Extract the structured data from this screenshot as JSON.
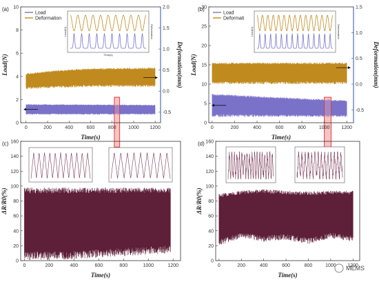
{
  "chart_data": [
    {
      "type": "line",
      "panel": "(a)",
      "xlabel": "Time(s)",
      "ylabel": "Load(N)",
      "y2label": "Deformation(mm)",
      "xlim": [
        -50,
        1250
      ],
      "ylim": [
        0,
        10
      ],
      "y2lim": [
        -0.75,
        2.0
      ],
      "xticks": [
        0,
        200,
        400,
        600,
        800,
        1000,
        1200
      ],
      "yticks": [
        0,
        2,
        4,
        6,
        8,
        10
      ],
      "y2ticks": [
        -0.5,
        0.0,
        0.5,
        1.0,
        1.5,
        2.0
      ],
      "highlight_x": [
        820,
        870
      ],
      "series": [
        {
          "name": "Load",
          "color": "#7a72c9",
          "axis": "left",
          "x": [
            0,
            1200
          ],
          "y_min": [
            0.7,
            0.7
          ],
          "y_max": [
            1.6,
            1.55
          ]
        },
        {
          "name": "Deformation",
          "color": "#c08a1e",
          "axis": "right",
          "x": [
            0,
            300,
            600,
            900,
            1200
          ],
          "y_min": [
            0.05,
            0.08,
            0.1,
            0.1,
            0.1
          ],
          "y_max": [
            0.42,
            0.5,
            0.54,
            0.55,
            0.56
          ]
        }
      ],
      "inset": {
        "ylabel": "Load(N)",
        "y2label": "Deformation",
        "xlabel": "Time(s)",
        "cycles": 10
      }
    },
    {
      "type": "line",
      "panel": "(b)",
      "xlabel": "Time(s)",
      "ylabel": "Load(N)",
      "y2label": "Deformation(mm)",
      "xlim": [
        -30,
        1260
      ],
      "ylim": [
        0,
        30
      ],
      "y2lim": [
        -0.75,
        1.5
      ],
      "xticks": [
        0,
        200,
        400,
        600,
        800,
        1000,
        1200
      ],
      "yticks": [
        0,
        5,
        10,
        15,
        20,
        25,
        30
      ],
      "y2ticks": [
        -0.5,
        0.0,
        0.5,
        1.0,
        1.5
      ],
      "highlight_x": [
        1000,
        1060
      ],
      "series": [
        {
          "name": "Load",
          "color": "#7a72c9",
          "axis": "left",
          "x": [
            0,
            1200
          ],
          "y_min": [
            1.5,
            1.5
          ],
          "y_max": [
            7.5,
            5.8
          ]
        },
        {
          "name": "Deformati",
          "color": "#c08a1e",
          "axis": "right",
          "x": [
            0,
            1200
          ],
          "y_min": [
            0.0,
            0.0
          ],
          "y_max": [
            0.42,
            0.42
          ]
        }
      ],
      "inset": {
        "ylabel": "Load(N)",
        "y2label": "Deformation",
        "cycles": 14
      }
    },
    {
      "type": "line",
      "panel": "(c)",
      "xlabel": "Time(s)",
      "ylabel": "ΔR/R0(%)",
      "xlim": [
        -30,
        1260
      ],
      "ylim": [
        0,
        160
      ],
      "xticks": [
        0,
        200,
        400,
        600,
        800,
        1000,
        1200
      ],
      "yticks": [
        0,
        20,
        40,
        60,
        80,
        100,
        120,
        140,
        160
      ],
      "series": [
        {
          "name": "",
          "color": "#5e1f38",
          "x": [
            0,
            200,
            400,
            600,
            800,
            1000,
            1180
          ],
          "y_min": [
            0,
            1,
            2,
            4,
            6,
            8,
            10
          ],
          "y_max": [
            98,
            98,
            98,
            98,
            98,
            98,
            98
          ]
        }
      ],
      "insets": [
        {
          "cycles": 11
        },
        {
          "cycles": 9
        }
      ]
    },
    {
      "type": "line",
      "panel": "(d)",
      "xlabel": "Time(s)",
      "ylabel": "ΔR/R0(%)",
      "xlim": [
        -30,
        1260
      ],
      "ylim": [
        0,
        160
      ],
      "xticks": [
        0,
        200,
        400,
        600,
        800,
        1000,
        1200
      ],
      "yticks": [
        0,
        20,
        40,
        60,
        80,
        100,
        120,
        140,
        160
      ],
      "series": [
        {
          "name": "",
          "color": "#5e1f38",
          "x": [
            0,
            200,
            400,
            600,
            800,
            1000,
            1200
          ],
          "y_min": [
            20,
            30,
            25,
            28,
            22,
            30,
            25
          ],
          "y_max": [
            90,
            94,
            96,
            94,
            93,
            94,
            94
          ]
        }
      ],
      "insets": [
        {
          "cycles": 18
        },
        {
          "cycles": 14
        }
      ]
    }
  ],
  "watermark": "MEMS"
}
